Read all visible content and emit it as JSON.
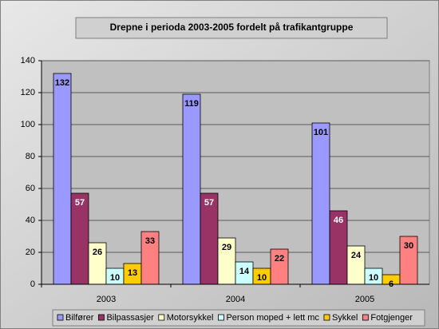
{
  "chart_data": {
    "type": "bar",
    "title": "Drepne i perioda 2003-2005 fordelt på trafikantgruppe",
    "categories": [
      "2003",
      "2004",
      "2005"
    ],
    "series": [
      {
        "name": "Bilfører",
        "color": "#9999ff",
        "values": [
          132,
          119,
          101
        ]
      },
      {
        "name": "Bilpassasjer",
        "color": "#993366",
        "values": [
          57,
          57,
          46
        ]
      },
      {
        "name": "Motorsykkel",
        "color": "#ffffcc",
        "values": [
          26,
          29,
          24
        ]
      },
      {
        "name": "Person moped + lett mc",
        "color": "#ccffff",
        "values": [
          10,
          14,
          10
        ]
      },
      {
        "name": "Sykkel",
        "color": "#ffcc00",
        "values": [
          13,
          10,
          6
        ]
      },
      {
        "name": "Fotgjenger",
        "color": "#ff8080",
        "values": [
          33,
          22,
          30
        ]
      }
    ],
    "ylim": [
      0,
      140
    ],
    "yticks": [
      0,
      20,
      40,
      60,
      80,
      100,
      120,
      140
    ],
    "grid": true,
    "legend": "bottom"
  }
}
